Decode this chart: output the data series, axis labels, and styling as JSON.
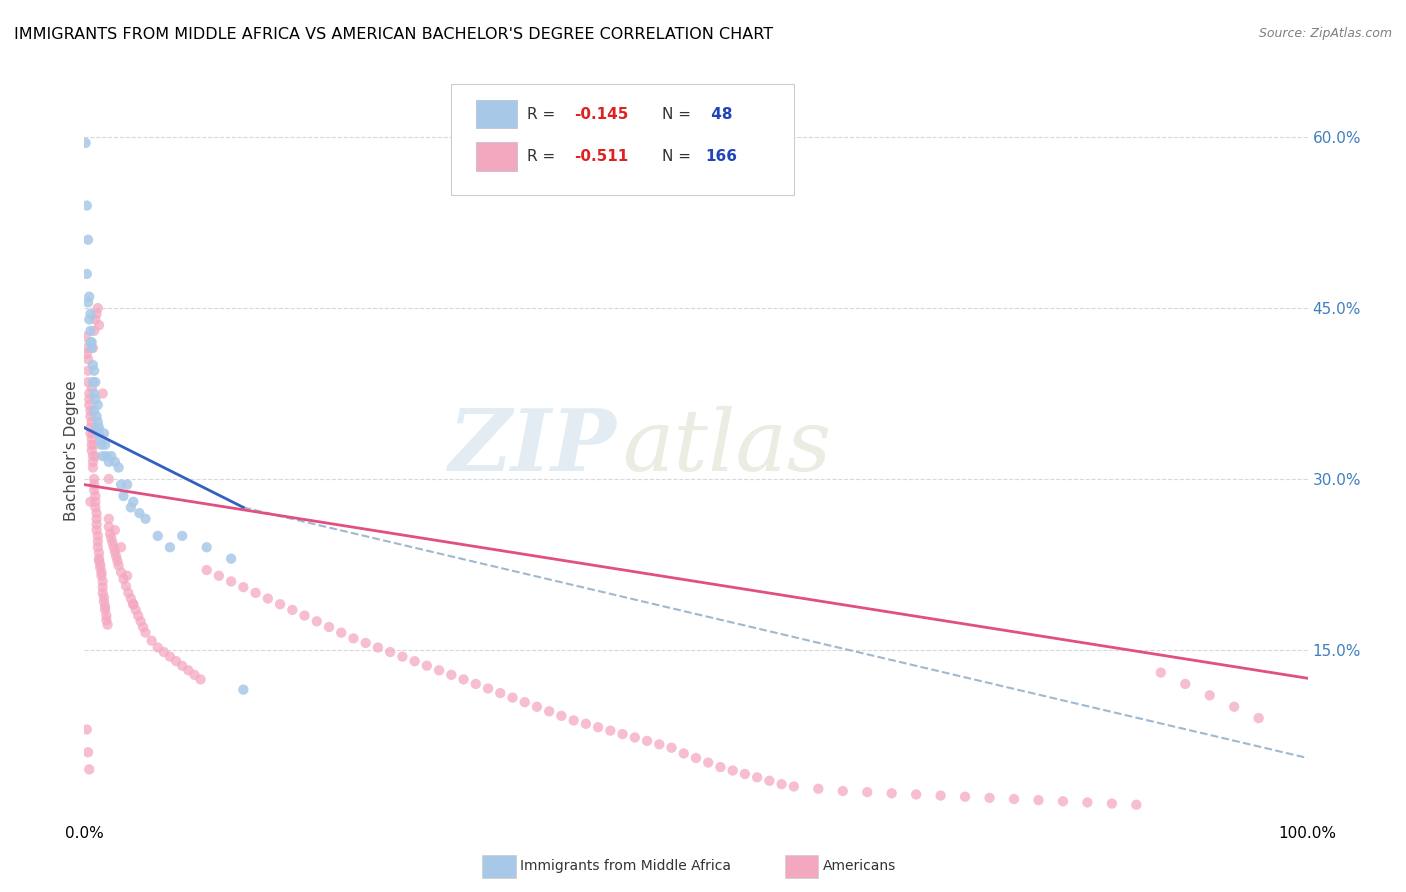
{
  "title": "IMMIGRANTS FROM MIDDLE AFRICA VS AMERICAN BACHELOR'S DEGREE CORRELATION CHART",
  "source": "Source: ZipAtlas.com",
  "ylabel": "Bachelor's Degree",
  "watermark_zip": "ZIP",
  "watermark_atlas": "atlas",
  "xlim": [
    0,
    1.0
  ],
  "ylim": [
    0,
    0.65
  ],
  "yticks_right": [
    0.15,
    0.3,
    0.45,
    0.6
  ],
  "ytick_labels_right": [
    "15.0%",
    "30.0%",
    "45.0%",
    "60.0%"
  ],
  "blue_color": "#A8C8E8",
  "pink_color": "#F4A8C0",
  "blue_line_color": "#3060C0",
  "pink_line_color": "#E05080",
  "dashed_line_color": "#A0B8D0",
  "grid_color": "#D8D8D8",
  "background_color": "#FFFFFF",
  "blue_r": "-0.145",
  "blue_n": "48",
  "pink_r": "-0.511",
  "pink_n": "166",
  "blue_line_x0": 0.0,
  "blue_line_x1": 0.13,
  "blue_line_y0": 0.345,
  "blue_line_y1": 0.275,
  "pink_line_x0": 0.0,
  "pink_line_x1": 1.0,
  "pink_line_y0": 0.295,
  "pink_line_y1": 0.125,
  "dash_line_x0": 0.13,
  "dash_line_x1": 1.0,
  "dash_line_y0": 0.275,
  "dash_line_y1": 0.055
}
